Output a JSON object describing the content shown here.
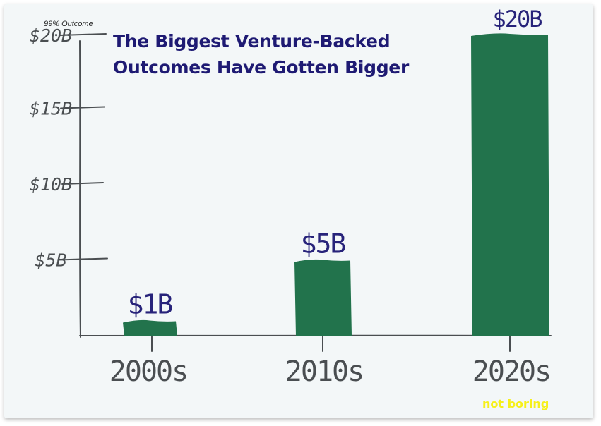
{
  "chart_data": {
    "type": "bar",
    "title": "The Biggest Venture-Backed Outcomes Have Gotten Bigger",
    "title_lines": [
      "The Biggest Venture-Backed",
      "Outcomes Have Gotten Bigger"
    ],
    "subtitle": "99% Outcome",
    "categories": [
      "2000s",
      "2010s",
      "2020s"
    ],
    "values": [
      1,
      5,
      20
    ],
    "value_labels": [
      "$1B",
      "$5B",
      "$20B"
    ],
    "y_ticks": [
      5,
      10,
      15,
      20
    ],
    "y_tick_labels": [
      "$5B",
      "$10B",
      "$15B",
      "$20B"
    ],
    "ylim": [
      0,
      20
    ],
    "xlabel": "",
    "ylabel": "",
    "grid": false,
    "colors": {
      "bar": "#22734c",
      "axis": "#4a4e51",
      "title": "#1e1a73",
      "data_label": "#27237a"
    }
  },
  "brand": "not boring"
}
